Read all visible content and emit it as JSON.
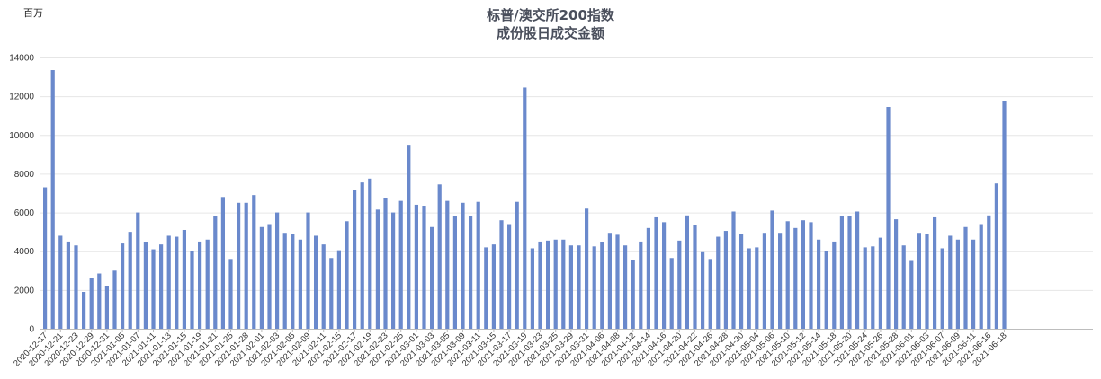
{
  "chart_data": {
    "type": "bar",
    "title": [
      "标普/澳交所200指数",
      "成份股日成交金额"
    ],
    "unit_label": "百万",
    "ylim": [
      0,
      14000
    ],
    "yticks": [
      0,
      2000,
      4000,
      6000,
      8000,
      10000,
      12000,
      14000
    ],
    "grid": true,
    "bar_color": "#6a89cc",
    "tick_labels": [
      "2020-12-17",
      "2020-12-21",
      "2020-12-23",
      "2020-12-29",
      "2020-12-31",
      "2021-01-05",
      "2021-01-07",
      "2021-01-11",
      "2021-01-13",
      "2021-01-15",
      "2021-01-19",
      "2021-01-21",
      "2021-01-25",
      "2021-01-28",
      "2021-02-01",
      "2021-02-03",
      "2021-02-05",
      "2021-02-09",
      "2021-02-11",
      "2021-02-15",
      "2021-02-17",
      "2021-02-19",
      "2021-02-23",
      "2021-02-25",
      "2021-03-01",
      "2021-03-03",
      "2021-03-05",
      "2021-03-09",
      "2021-03-11",
      "2021-03-15",
      "2021-03-17",
      "2021-03-19",
      "2021-03-23",
      "2021-03-25",
      "2021-03-29",
      "2021-03-31",
      "2021-04-06",
      "2021-04-08",
      "2021-04-12",
      "2021-04-14",
      "2021-04-16",
      "2021-04-20",
      "2021-04-22",
      "2021-04-26",
      "2021-04-28",
      "2021-04-30",
      "2021-05-04",
      "2021-05-06",
      "2021-05-10",
      "2021-05-12",
      "2021-05-14",
      "2021-05-18",
      "2021-05-20",
      "2021-05-24",
      "2021-05-26",
      "2021-05-28",
      "2021-06-01",
      "2021-06-03",
      "2021-06-07",
      "2021-06-09",
      "2021-06-11",
      "2021-06-16",
      "2021-06-18"
    ],
    "values": [
      7300,
      13350,
      4800,
      4500,
      4300,
      1900,
      2600,
      2850,
      2200,
      3000,
      4400,
      5000,
      6000,
      4450,
      4100,
      4350,
      4800,
      4750,
      5100,
      4000,
      4500,
      4600,
      5800,
      6800,
      3600,
      6500,
      6500,
      6900,
      5250,
      5400,
      6000,
      4950,
      4900,
      4600,
      6000,
      4800,
      4350,
      3650,
      4050,
      5550,
      7150,
      7550,
      7750,
      6150,
      6750,
      6000,
      6600,
      9450,
      6400,
      6350,
      5250,
      7450,
      6600,
      5800,
      6500,
      5800,
      6550,
      4200,
      4350,
      5600,
      5400,
      6550,
      12450,
      4150,
      4500,
      4550,
      4600,
      4600,
      4300,
      4300,
      6200,
      4250,
      4450,
      4950,
      4850,
      4300,
      3550,
      4500,
      5200,
      5750,
      5500,
      3650,
      4550,
      5850,
      5350,
      3950,
      3600,
      4750,
      5050,
      6050,
      4900,
      4150,
      4200,
      4950,
      6100,
      4950,
      5550,
      5200,
      5600,
      5500,
      4600,
      4000,
      4500,
      5800,
      5800,
      6050,
      4200,
      4250,
      4700,
      11450,
      5650,
      4300,
      3500,
      4950,
      4900,
      5750,
      4150,
      4800,
      4600,
      5250,
      4600,
      5400,
      5850,
      7500,
      11750
    ]
  }
}
